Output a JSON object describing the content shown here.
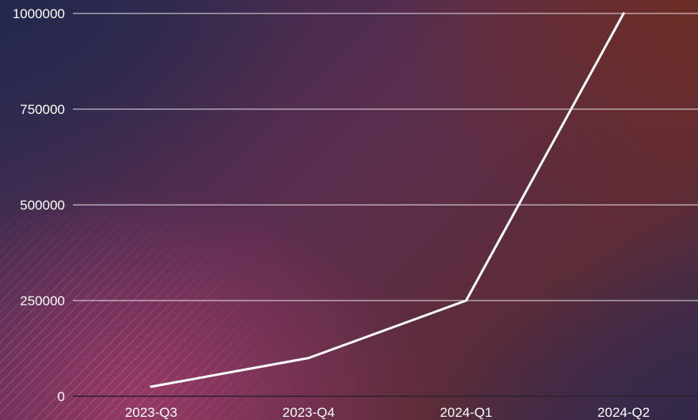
{
  "chart_data": {
    "type": "line",
    "title": "",
    "xlabel": "",
    "ylabel": "",
    "categories": [
      "2023-Q3",
      "2023-Q4",
      "2024-Q1",
      "2024-Q2"
    ],
    "series": [
      {
        "values": [
          25000,
          100000,
          250000,
          1000000
        ]
      }
    ],
    "ylim": [
      0,
      1000000
    ],
    "yticks": [
      "0",
      "250000",
      "500000",
      "750000",
      "1000000"
    ],
    "grid": "horizontal",
    "legend": "none",
    "colors": {
      "line": "#ffffff",
      "grid": "#ffffff",
      "text": "#ffffff"
    }
  }
}
